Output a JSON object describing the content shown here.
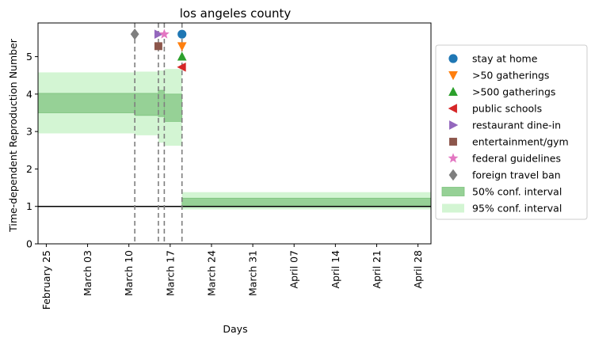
{
  "chart_data": {
    "type": "area",
    "title": "los angeles county",
    "xlabel": "Days",
    "ylabel": "Time-dependent Reproduction Number",
    "x_start": "February 24",
    "x_end": "April 30",
    "x_ticks": [
      "February 25",
      "March 03",
      "March 10",
      "March 17",
      "March 24",
      "March 31",
      "April 07",
      "April 14",
      "April 21",
      "April 28"
    ],
    "x_tick_days": [
      1,
      8,
      15,
      22,
      29,
      36,
      43,
      50,
      57,
      64
    ],
    "x_range_days": [
      -0.4,
      66.2
    ],
    "ylim": [
      0,
      5.9
    ],
    "y_ticks": [
      0,
      1,
      2,
      3,
      4,
      5
    ],
    "reference_line": 1,
    "intervals": [
      {
        "from": "February 24",
        "to": "March 11",
        "ci50": [
          3.5,
          4.02
        ],
        "ci95": [
          2.95,
          4.58
        ]
      },
      {
        "from": "March 11",
        "to": "March 15",
        "ci50": [
          3.43,
          4.02
        ],
        "ci95": [
          2.9,
          4.6
        ]
      },
      {
        "from": "March 15",
        "to": "March 16",
        "ci50": [
          3.4,
          4.1
        ],
        "ci95": [
          2.7,
          4.63
        ]
      },
      {
        "from": "March 16",
        "to": "March 19",
        "ci50": [
          3.27,
          4.0
        ],
        "ci95": [
          2.62,
          4.67
        ]
      },
      {
        "from": "March 19",
        "to": "April 30",
        "ci50": [
          1.03,
          1.22
        ],
        "ci95": [
          0.92,
          1.38
        ]
      }
    ],
    "interventions": [
      {
        "name": "stay at home",
        "date": "March 19",
        "y": 5.6,
        "marker": "circle",
        "color": "#1f77b4"
      },
      {
        "name": ">50 gatherings",
        "date": "March 19",
        "y": 5.28,
        "marker": "triangle-down",
        "color": "#ff7f0e"
      },
      {
        "name": ">500 gatherings",
        "date": "March 19",
        "y": 5.0,
        "marker": "triangle-up",
        "color": "#2ca02c"
      },
      {
        "name": "public schools",
        "date": "March 19",
        "y": 4.72,
        "marker": "triangle-left",
        "color": "#d62728"
      },
      {
        "name": "restaurant dine-in",
        "date": "March 15",
        "y": 5.6,
        "marker": "triangle-right",
        "color": "#9467bd"
      },
      {
        "name": "entertainment/gym",
        "date": "March 15",
        "y": 5.28,
        "marker": "square",
        "color": "#8c564b"
      },
      {
        "name": "federal guidelines",
        "date": "March 16",
        "y": 5.6,
        "marker": "star",
        "color": "#e377c2"
      },
      {
        "name": "foreign travel ban",
        "date": "March 11",
        "y": 5.6,
        "marker": "diamond",
        "color": "#7f7f7f"
      }
    ],
    "intervention_days": {
      "March 11": 16,
      "March 15": 20,
      "March 16": 21,
      "March 19": 24
    },
    "interval_day_bounds": [
      -0.4,
      16,
      20,
      21,
      24,
      66.2
    ],
    "legend_position": "center-right outside",
    "legend": [
      {
        "label": "stay at home",
        "marker": "circle",
        "color": "#1f77b4"
      },
      {
        "label": ">50 gatherings",
        "marker": "triangle-down",
        "color": "#ff7f0e"
      },
      {
        "label": ">500 gatherings",
        "marker": "triangle-up",
        "color": "#2ca02c"
      },
      {
        "label": "public schools",
        "marker": "triangle-left",
        "color": "#d62728"
      },
      {
        "label": "restaurant dine-in",
        "marker": "triangle-right",
        "color": "#9467bd"
      },
      {
        "label": "entertainment/gym",
        "marker": "square",
        "color": "#8c564b"
      },
      {
        "label": "federal guidelines",
        "marker": "star",
        "color": "#e377c2"
      },
      {
        "label": "foreign travel ban",
        "marker": "diamond",
        "color": "#7f7f7f"
      },
      {
        "label": "50% conf. interval",
        "marker": "patch",
        "color": "#2ca02c"
      },
      {
        "label": "95% conf. interval",
        "marker": "patch",
        "color": "#90ee90"
      }
    ],
    "colors": {
      "ci50_fill": "#96d196",
      "ci50_edge": "#7cc27c",
      "ci95_fill": "#d3f5d3",
      "vline": "#7f7f7f",
      "hline": "#000000"
    }
  }
}
